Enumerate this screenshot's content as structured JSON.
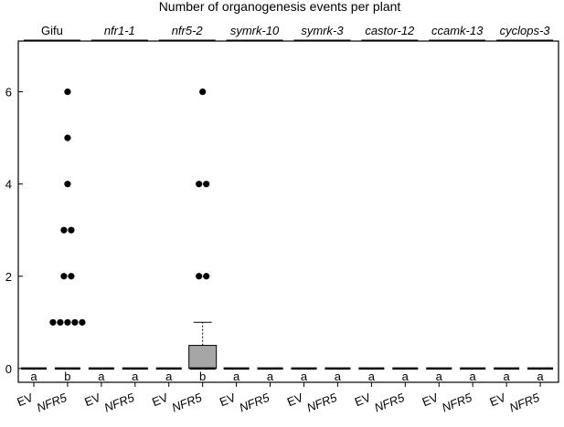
{
  "chart_data": {
    "type": "box",
    "title": "Number of organogenesis events per plant",
    "genotypes": [
      {
        "label": "Gifu",
        "italic": false
      },
      {
        "label": "nfr1-1",
        "italic": true
      },
      {
        "label": "nfr5-2",
        "italic": true
      },
      {
        "label": "symrk-10",
        "italic": true
      },
      {
        "label": "symrk-3",
        "italic": true
      },
      {
        "label": "castor-12",
        "italic": true
      },
      {
        "label": "ccamk-13",
        "italic": true
      },
      {
        "label": "cyclops-3",
        "italic": true
      }
    ],
    "treatments": [
      {
        "label": "EV",
        "italic": false
      },
      {
        "label": "NFR5",
        "italic": true
      }
    ],
    "ylim": [
      -0.3,
      7.1
    ],
    "yticks": [
      0,
      2,
      4,
      6
    ],
    "grid": false,
    "box_fill": "#a6a6a6",
    "groups": [
      {
        "genotype": "Gifu",
        "treatment": "EV",
        "letter": "a",
        "q1": 0,
        "median": 0,
        "q3": 0,
        "whisker_high": 0,
        "points": []
      },
      {
        "genotype": "Gifu",
        "treatment": "NFR5",
        "letter": "b",
        "q1": 0,
        "median": 0,
        "q3": 0,
        "whisker_high": 0,
        "points": [
          1,
          1,
          1,
          1,
          1,
          2,
          2,
          3,
          3,
          4,
          5,
          6
        ]
      },
      {
        "genotype": "nfr1-1",
        "treatment": "EV",
        "letter": "a",
        "q1": 0,
        "median": 0,
        "q3": 0,
        "whisker_high": 0,
        "points": []
      },
      {
        "genotype": "nfr1-1",
        "treatment": "NFR5",
        "letter": "a",
        "q1": 0,
        "median": 0,
        "q3": 0,
        "whisker_high": 0,
        "points": []
      },
      {
        "genotype": "nfr5-2",
        "treatment": "EV",
        "letter": "a",
        "q1": 0,
        "median": 0,
        "q3": 0,
        "whisker_high": 0,
        "points": []
      },
      {
        "genotype": "nfr5-2",
        "treatment": "NFR5",
        "letter": "b",
        "q1": 0,
        "median": 0,
        "q3": 0.5,
        "whisker_high": 1,
        "points": [
          2,
          2,
          4,
          4,
          6
        ]
      },
      {
        "genotype": "symrk-10",
        "treatment": "EV",
        "letter": "a",
        "q1": 0,
        "median": 0,
        "q3": 0,
        "whisker_high": 0,
        "points": []
      },
      {
        "genotype": "symrk-10",
        "treatment": "NFR5",
        "letter": "a",
        "q1": 0,
        "median": 0,
        "q3": 0,
        "whisker_high": 0,
        "points": []
      },
      {
        "genotype": "symrk-3",
        "treatment": "EV",
        "letter": "a",
        "q1": 0,
        "median": 0,
        "q3": 0,
        "whisker_high": 0,
        "points": []
      },
      {
        "genotype": "symrk-3",
        "treatment": "NFR5",
        "letter": "a",
        "q1": 0,
        "median": 0,
        "q3": 0,
        "whisker_high": 0,
        "points": []
      },
      {
        "genotype": "castor-12",
        "treatment": "EV",
        "letter": "a",
        "q1": 0,
        "median": 0,
        "q3": 0,
        "whisker_high": 0,
        "points": []
      },
      {
        "genotype": "castor-12",
        "treatment": "NFR5",
        "letter": "a",
        "q1": 0,
        "median": 0,
        "q3": 0,
        "whisker_high": 0,
        "points": []
      },
      {
        "genotype": "ccamk-13",
        "treatment": "EV",
        "letter": "a",
        "q1": 0,
        "median": 0,
        "q3": 0,
        "whisker_high": 0,
        "points": []
      },
      {
        "genotype": "ccamk-13",
        "treatment": "NFR5",
        "letter": "a",
        "q1": 0,
        "median": 0,
        "q3": 0,
        "whisker_high": 0,
        "points": []
      },
      {
        "genotype": "cyclops-3",
        "treatment": "EV",
        "letter": "a",
        "q1": 0,
        "median": 0,
        "q3": 0,
        "whisker_high": 0,
        "points": []
      },
      {
        "genotype": "cyclops-3",
        "treatment": "NFR5",
        "letter": "a",
        "q1": 0,
        "median": 0,
        "q3": 0,
        "whisker_high": 0,
        "points": []
      }
    ]
  }
}
